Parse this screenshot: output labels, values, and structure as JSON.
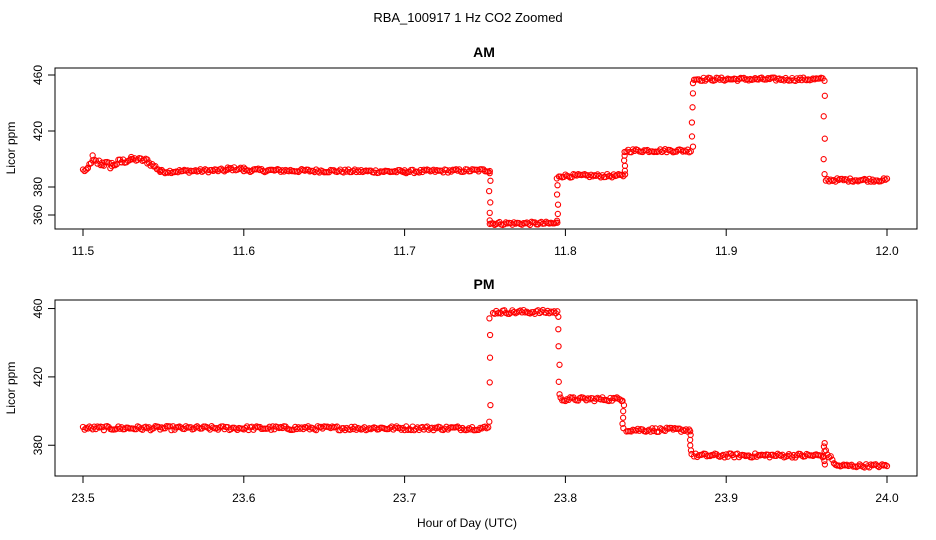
{
  "figure": {
    "title": "RBA_100917  1 Hz CO2 Zoomed",
    "xlabel": "Hour of Day (UTC)"
  },
  "chart_data": [
    {
      "type": "scatter",
      "title": "AM",
      "xlabel": "",
      "ylabel": "Licor ppm",
      "xlim": [
        11.5,
        12.0
      ],
      "ylim": [
        350,
        465
      ],
      "x_ticks": [
        "11.5",
        "11.6",
        "11.7",
        "11.8",
        "11.9",
        "12.0"
      ],
      "y_ticks": [
        "360",
        "380",
        "420",
        "460"
      ],
      "marker_color": "#ff0000",
      "segments": [
        {
          "x": [
            11.5,
            11.503
          ],
          "y": [
            392,
            392
          ],
          "spread": 1.5
        },
        {
          "x": [
            11.503,
            11.506
          ],
          "y": [
            393,
            401
          ],
          "spread": 2
        },
        {
          "x": [
            11.506,
            11.512
          ],
          "y": [
            398,
            397
          ],
          "spread": 2.5
        },
        {
          "x": [
            11.512,
            11.518
          ],
          "y": [
            397,
            395
          ],
          "spread": 2.5
        },
        {
          "x": [
            11.518,
            11.524
          ],
          "y": [
            396,
            398
          ],
          "spread": 2.5
        },
        {
          "x": [
            11.524,
            11.53
          ],
          "y": [
            398,
            400
          ],
          "spread": 2
        },
        {
          "x": [
            11.53,
            11.54
          ],
          "y": [
            400,
            399
          ],
          "spread": 1.5
        },
        {
          "x": [
            11.54,
            11.548
          ],
          "y": [
            398,
            392
          ],
          "spread": 1.5
        },
        {
          "x": [
            11.548,
            11.59
          ],
          "y": [
            391,
            392
          ],
          "spread": 1.2
        },
        {
          "x": [
            11.59,
            11.6
          ],
          "y": [
            393,
            393
          ],
          "spread": 1.2
        },
        {
          "x": [
            11.6,
            11.7
          ],
          "y": [
            392,
            391
          ],
          "spread": 1.2
        },
        {
          "x": [
            11.7,
            11.753
          ],
          "y": [
            391,
            392
          ],
          "spread": 1.2
        },
        {
          "x": [
            11.753,
            11.795
          ],
          "y": [
            354,
            354
          ],
          "spread": 1.2
        },
        {
          "x": [
            11.796,
            11.836
          ],
          "y": [
            388,
            388
          ],
          "spread": 1.2
        },
        {
          "x": [
            11.838,
            11.878
          ],
          "y": [
            406,
            406
          ],
          "spread": 1.2
        },
        {
          "x": [
            11.88,
            11.96
          ],
          "y": [
            457,
            457
          ],
          "spread": 1.2
        },
        {
          "x": [
            11.962,
            12.0
          ],
          "y": [
            385,
            385
          ],
          "spread": 1.2
        }
      ],
      "transitions": [
        {
          "x": 11.753,
          "y": [
            392,
            354
          ]
        },
        {
          "x": 11.795,
          "y": [
            354,
            388
          ]
        },
        {
          "x": 11.837,
          "y": [
            388,
            406
          ]
        },
        {
          "x": 11.879,
          "y": [
            406,
            457
          ]
        },
        {
          "x": 11.961,
          "y": [
            460,
            385
          ]
        }
      ]
    },
    {
      "type": "scatter",
      "title": "PM",
      "xlabel": "",
      "ylabel": "Licor ppm",
      "xlim": [
        23.5,
        24.0
      ],
      "ylim": [
        362,
        465
      ],
      "x_ticks": [
        "23.5",
        "23.6",
        "23.7",
        "23.8",
        "23.9",
        "24.0"
      ],
      "y_ticks": [
        "380",
        "420",
        "460"
      ],
      "marker_color": "#ff0000",
      "segments": [
        {
          "x": [
            23.5,
            23.752
          ],
          "y": [
            390,
            390
          ],
          "spread": 1.2
        },
        {
          "x": [
            23.755,
            23.795
          ],
          "y": [
            458,
            458
          ],
          "spread": 1.2
        },
        {
          "x": [
            23.797,
            23.835
          ],
          "y": [
            407,
            407
          ],
          "spread": 1.2
        },
        {
          "x": [
            23.838,
            23.877
          ],
          "y": [
            389,
            389
          ],
          "spread": 1.2
        },
        {
          "x": [
            23.88,
            23.96
          ],
          "y": [
            374,
            374
          ],
          "spread": 1.2
        },
        {
          "x": [
            23.962,
            23.968
          ],
          "y": [
            376,
            369
          ],
          "spread": 1.2
        },
        {
          "x": [
            23.968,
            24.0
          ],
          "y": [
            368,
            368
          ],
          "spread": 1.0
        }
      ],
      "transitions": [
        {
          "x": 23.753,
          "y": [
            390,
            458
          ]
        },
        {
          "x": 23.796,
          "y": [
            458,
            407
          ]
        },
        {
          "x": 23.836,
          "y": [
            407,
            389
          ]
        },
        {
          "x": 23.878,
          "y": [
            389,
            374
          ]
        },
        {
          "x": 23.961,
          "y": [
            382,
            368
          ]
        }
      ]
    }
  ]
}
